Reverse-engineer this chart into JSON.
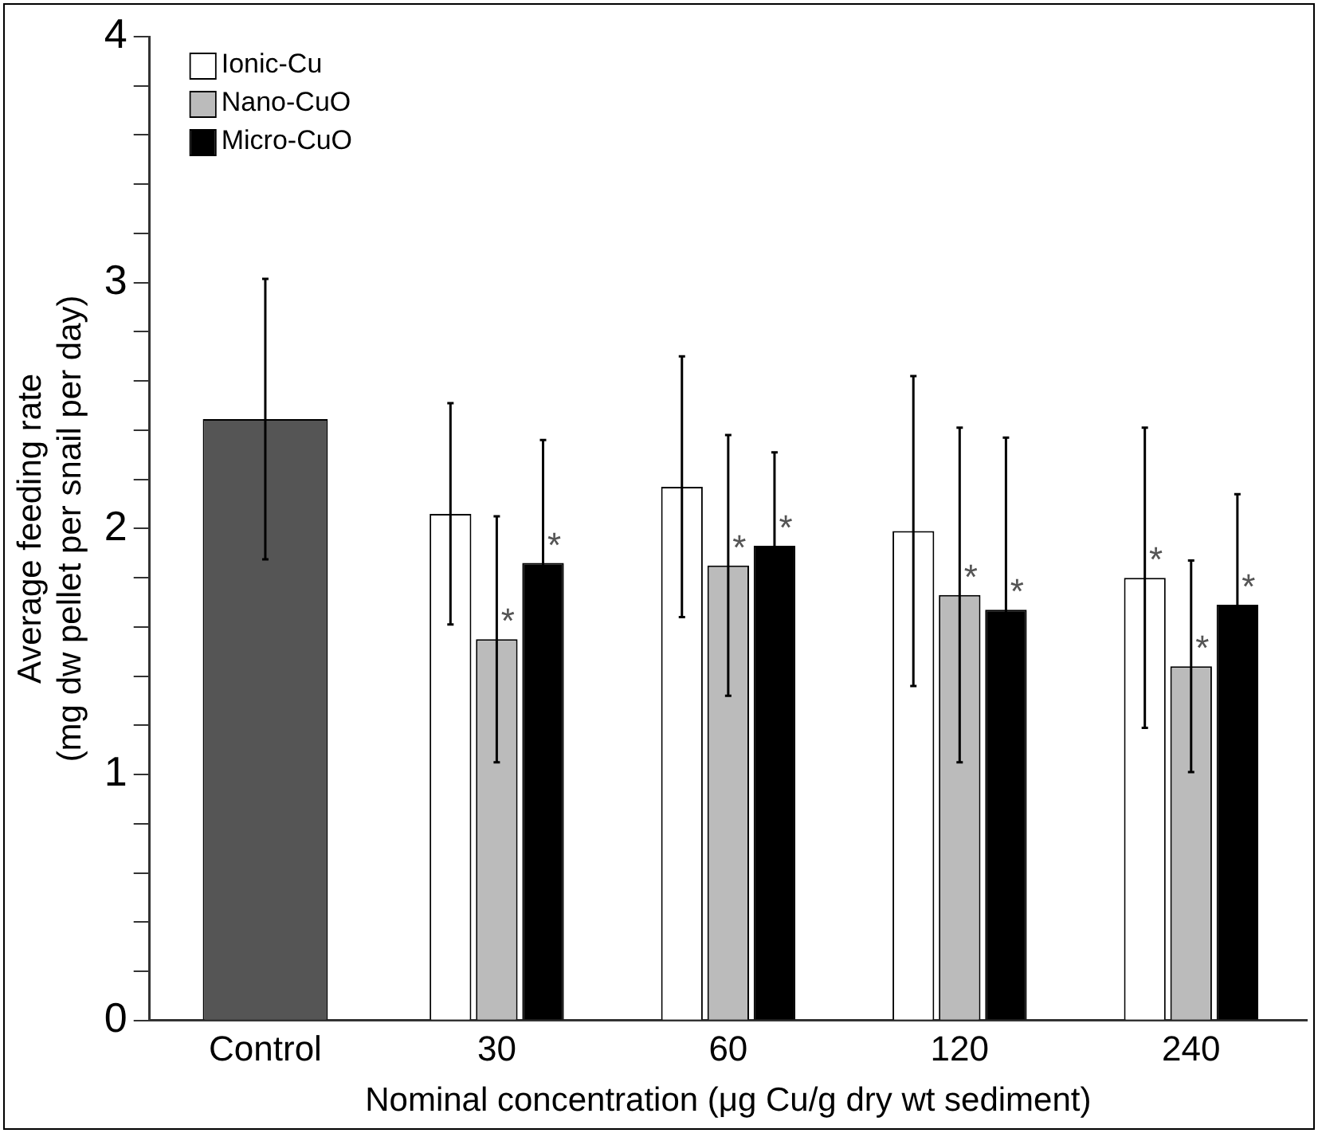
{
  "chart_data": {
    "type": "bar",
    "xlabel": "Nominal concentration (μg Cu/g dry wt sediment)",
    "ylabel": "Average feeding rate\n(mg dw pellet per snail per day)",
    "categories": [
      "Control",
      "30",
      "60",
      "120",
      "240"
    ],
    "series": [
      {
        "color": "#555555",
        "values": [
          2.445,
          null,
          null,
          null,
          null
        ],
        "errors": [
          0.57,
          null,
          null,
          null,
          null
        ]
      },
      {
        "name": "Ionic-Cu",
        "color": "#ffffff",
        "values": [
          null,
          2.06,
          2.17,
          1.99,
          1.8
        ],
        "errors": [
          null,
          0.45,
          0.53,
          0.63,
          0.61
        ],
        "value_labels": [
          null,
          null,
          null,
          null,
          "*"
        ]
      },
      {
        "name": "Nano-CuO",
        "color": "#bbbbbb",
        "values": [
          null,
          1.55,
          1.85,
          1.73,
          1.44
        ],
        "errors": [
          null,
          0.5,
          0.53,
          0.68,
          0.43
        ],
        "value_labels": [
          null,
          "*",
          "*",
          "*",
          "*"
        ]
      },
      {
        "name": "Micro-CuO",
        "color": "#000000",
        "values": [
          null,
          1.86,
          1.93,
          1.67,
          1.69
        ],
        "errors": [
          null,
          0.5,
          0.38,
          0.7,
          0.45
        ],
        "value_labels": [
          null,
          "*",
          "*",
          "*",
          "*"
        ]
      }
    ],
    "ylim": [
      0,
      4
    ],
    "yticks": [
      0,
      {
        "value": 0.2,
        "label": null
      },
      {
        "value": 0.4,
        "label": null
      },
      {
        "value": 0.6,
        "label": null
      },
      {
        "value": 0.8,
        "label": null
      },
      1,
      {
        "value": 1.2,
        "label": null
      },
      {
        "value": 1.4,
        "label": null
      },
      {
        "value": 1.6,
        "label": null
      },
      {
        "value": 1.8,
        "label": null
      },
      2,
      {
        "value": 2.2,
        "label": null
      },
      {
        "value": 2.4,
        "label": null
      },
      {
        "value": 2.6,
        "label": null
      },
      {
        "value": 2.8,
        "label": null
      },
      3,
      {
        "value": 3.2,
        "label": null
      },
      {
        "value": 3.4,
        "label": null
      },
      {
        "value": 3.6,
        "label": null
      },
      {
        "value": 3.8,
        "label": null
      },
      4
    ],
    "grid": false,
    "legend": "top left"
  }
}
